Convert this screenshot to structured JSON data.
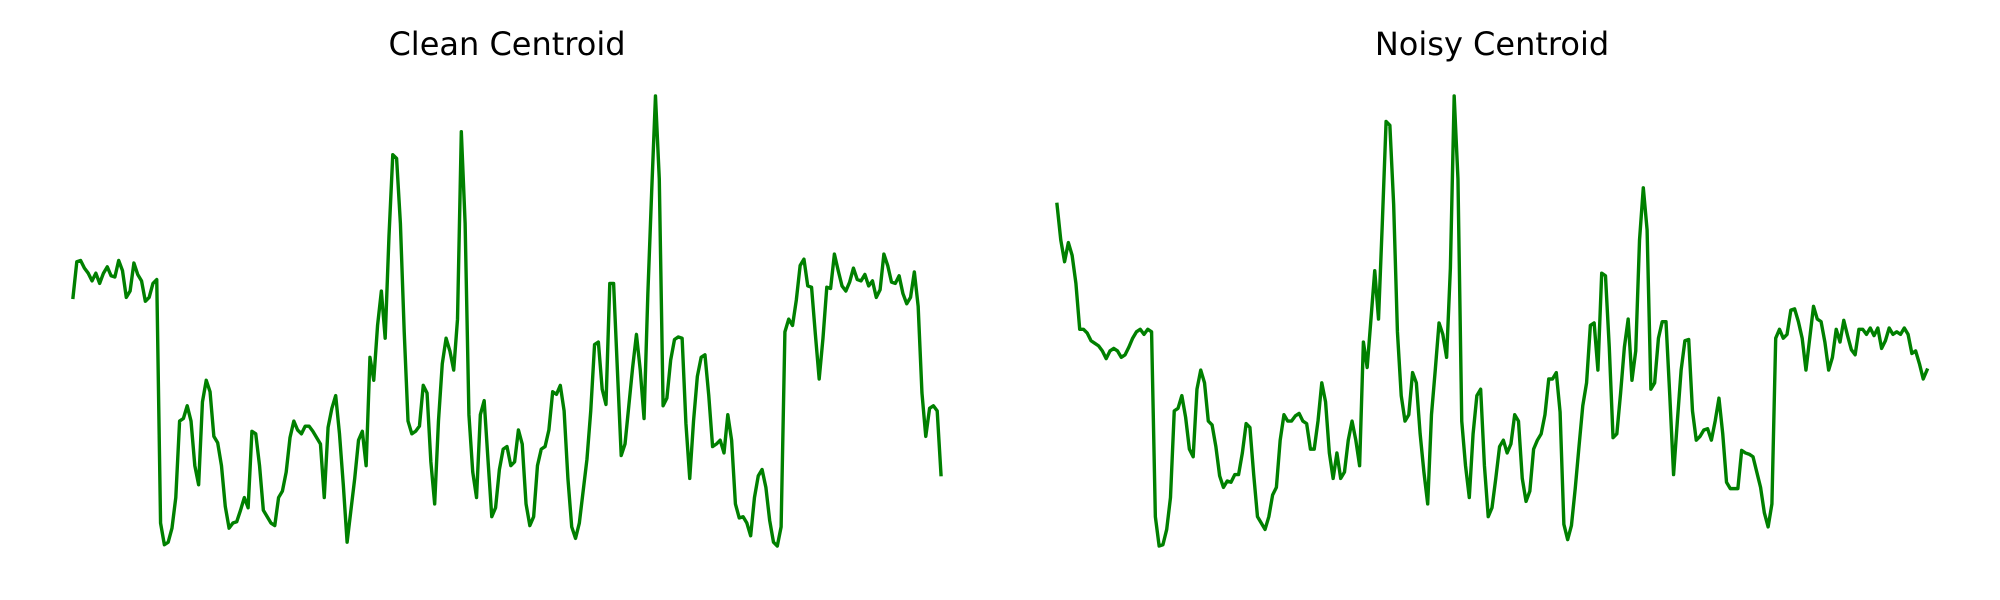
{
  "chart_data": [
    {
      "type": "line",
      "title": "Clean Centroid",
      "color": "#008000",
      "values": [
        197,
        225,
        226,
        220,
        216,
        210,
        216,
        208,
        216,
        221,
        214,
        213,
        226,
        218,
        197,
        202,
        224,
        215,
        210,
        194,
        197,
        208,
        211,
        20,
        3,
        5,
        16,
        40,
        100,
        102,
        112,
        100,
        65,
        50,
        115,
        132,
        123,
        88,
        83,
        65,
        33,
        16,
        20,
        21,
        30,
        40,
        32,
        92,
        90,
        65,
        30,
        25,
        20,
        18,
        40,
        45,
        60,
        87,
        100,
        93,
        90,
        96,
        96,
        92,
        87,
        82,
        40,
        95,
        110,
        120,
        90,
        50,
        5,
        30,
        55,
        85,
        92,
        65,
        150,
        132,
        175,
        202,
        165,
        245,
        309,
        306,
        255,
        170,
        100,
        90,
        92,
        96,
        128,
        122,
        68,
        35,
        100,
        145,
        165,
        155,
        140,
        180,
        327,
        255,
        105,
        60,
        40,
        105,
        116,
        70,
        25,
        32,
        62,
        78,
        80,
        65,
        68,
        93,
        82,
        35,
        18,
        25,
        65,
        78,
        80,
        93,
        123,
        121,
        128,
        108,
        55,
        17,
        8,
        20,
        45,
        70,
        108,
        160,
        162,
        125,
        113,
        208,
        208,
        140,
        73,
        82,
        112,
        142,
        168,
        140,
        102,
        200,
        280,
        355,
        290,
        112,
        118,
        148,
        164,
        166,
        165,
        98,
        55,
        100,
        135,
        150,
        152,
        120,
        80,
        82,
        85,
        75,
        105,
        85,
        35,
        24,
        25,
        20,
        10,
        40,
        57,
        62,
        48,
        22,
        5,
        2,
        17,
        170,
        180,
        175,
        195,
        222,
        227,
        206,
        205,
        168,
        133,
        165,
        205,
        204,
        231,
        218,
        206,
        202,
        209,
        220,
        211,
        210,
        215,
        206,
        210,
        197,
        203,
        231,
        222,
        209,
        208,
        214,
        200,
        192,
        197,
        217,
        190,
        122,
        88,
        110,
        112,
        108,
        58
      ]
    },
    {
      "type": "line",
      "title": "Noisy Centroid",
      "color": "#008000",
      "values": [
        270,
        242,
        225,
        240,
        230,
        208,
        172,
        172,
        169,
        163,
        161,
        159,
        155,
        149,
        155,
        157,
        155,
        150,
        152,
        158,
        165,
        170,
        172,
        168,
        172,
        170,
        25,
        2,
        3,
        15,
        40,
        108,
        110,
        120,
        103,
        78,
        72,
        125,
        140,
        130,
        100,
        97,
        80,
        57,
        48,
        53,
        52,
        58,
        58,
        75,
        98,
        95,
        58,
        25,
        20,
        15,
        25,
        42,
        48,
        85,
        105,
        100,
        100,
        104,
        106,
        100,
        98,
        78,
        78,
        100,
        130,
        115,
        75,
        55,
        75,
        55,
        60,
        85,
        100,
        85,
        65,
        162,
        142,
        180,
        218,
        180,
        255,
        335,
        332,
        270,
        170,
        120,
        100,
        105,
        138,
        130,
        90,
        60,
        35,
        105,
        140,
        177,
        168,
        150,
        220,
        355,
        290,
        100,
        65,
        40,
        90,
        120,
        125,
        65,
        25,
        32,
        55,
        80,
        85,
        75,
        82,
        105,
        100,
        55,
        37,
        45,
        78,
        85,
        90,
        105,
        133,
        133,
        138,
        107,
        19,
        7,
        18,
        47,
        80,
        112,
        130,
        175,
        177,
        140,
        216,
        214,
        158,
        87,
        90,
        122,
        158,
        180,
        132,
        155,
        242,
        283,
        250,
        125,
        130,
        165,
        178,
        178,
        120,
        58,
        100,
        140,
        163,
        164,
        108,
        85,
        88,
        93,
        94,
        85,
        100,
        118,
        90,
        52,
        47,
        47,
        47,
        77,
        75,
        74,
        72,
        60,
        48,
        28,
        17,
        35,
        165,
        172,
        165,
        168,
        187,
        188,
        178,
        165,
        140,
        165,
        190,
        180,
        178,
        162,
        140,
        150,
        172,
        162,
        179,
        167,
        156,
        152,
        172,
        172,
        168,
        173,
        167,
        173,
        157,
        163,
        173,
        168,
        170,
        168,
        173,
        168,
        153,
        155,
        145,
        133,
        140
      ]
    }
  ]
}
